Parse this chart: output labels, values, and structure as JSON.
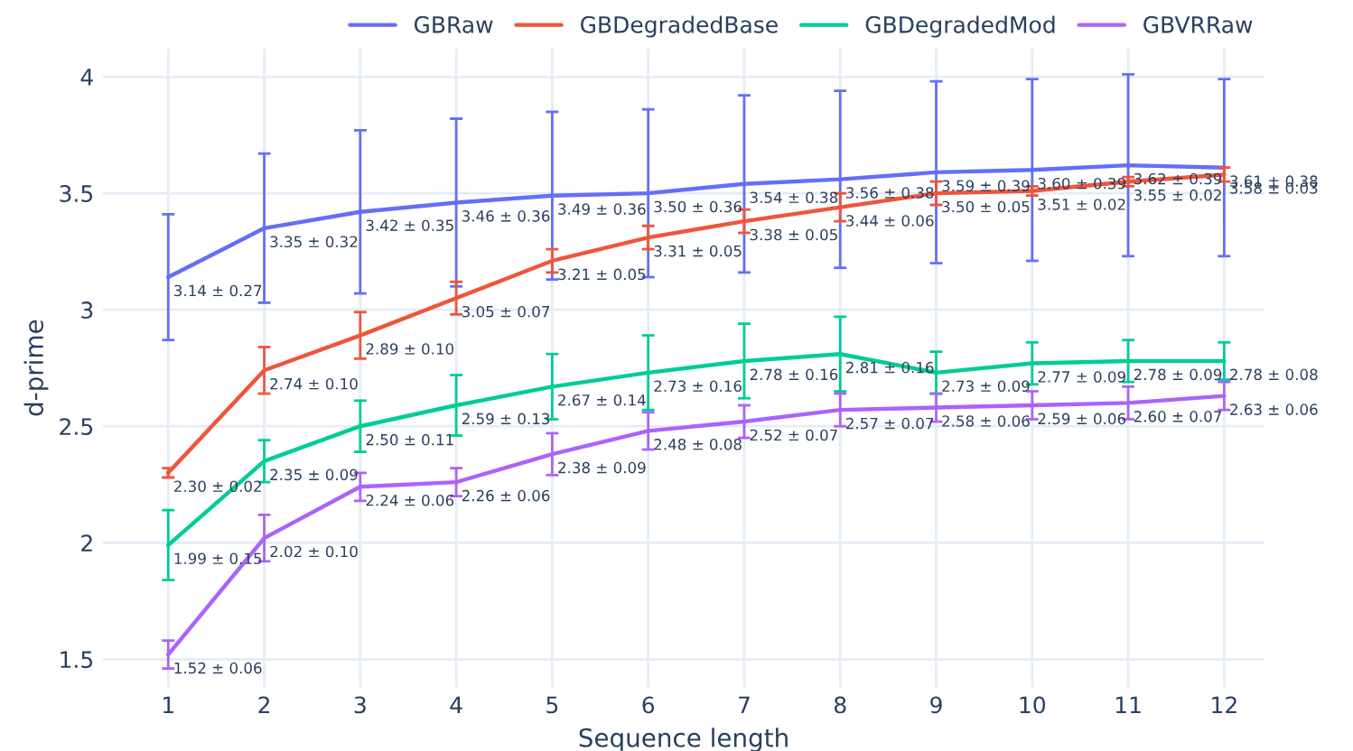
{
  "chart_data": {
    "type": "line",
    "xlabel": "Sequence length",
    "ylabel": "d-prime",
    "x": [
      1,
      2,
      3,
      4,
      5,
      6,
      7,
      8,
      9,
      10,
      11,
      12
    ],
    "xlim": [
      0.32,
      12.42
    ],
    "xticks": [
      1,
      2,
      3,
      4,
      5,
      6,
      7,
      8,
      9,
      10,
      11,
      12
    ],
    "ylim": [
      1.38,
      4.12
    ],
    "yticks": [
      1.5,
      2,
      2.5,
      3,
      3.5,
      4
    ],
    "grid": true,
    "legend": "top right",
    "marker": "none",
    "line_style": "solid",
    "series": [
      {
        "name": "GBRaw",
        "color": "#636efa",
        "values": [
          3.14,
          3.35,
          3.42,
          3.46,
          3.49,
          3.5,
          3.54,
          3.56,
          3.59,
          3.6,
          3.62,
          3.61
        ],
        "errors": [
          0.27,
          0.32,
          0.35,
          0.36,
          0.36,
          0.36,
          0.38,
          0.38,
          0.39,
          0.39,
          0.39,
          0.38
        ],
        "value_labels": [
          "3.14 ± 0.27",
          "3.35 ± 0.32",
          "3.42 ± 0.35",
          "3.46 ± 0.36",
          "3.49 ± 0.36",
          "3.50 ± 0.36",
          "3.54 ± 0.38",
          "3.56 ± 0.38",
          "3.59 ± 0.39",
          "3.60 ± 0.39",
          "3.62 ± 0.39",
          "3.61 ± 0.38"
        ]
      },
      {
        "name": "GBDegradedBase",
        "color": "#ef553b",
        "values": [
          2.3,
          2.74,
          2.89,
          3.05,
          3.21,
          3.31,
          3.38,
          3.44,
          3.5,
          3.51,
          3.55,
          3.58
        ],
        "errors": [
          0.02,
          0.1,
          0.1,
          0.07,
          0.05,
          0.05,
          0.05,
          0.06,
          0.05,
          0.02,
          0.02,
          0.03
        ],
        "value_labels": [
          "2.30 ± 0.02",
          "2.74 ± 0.10",
          "2.89 ± 0.10",
          "3.05 ± 0.07",
          "3.21 ± 0.05",
          "3.31 ± 0.05",
          "3.38 ± 0.05",
          "3.44 ± 0.06",
          "3.50 ± 0.05",
          "3.51 ± 0.02",
          "3.55 ± 0.02",
          "3.58 ± 0.03"
        ]
      },
      {
        "name": "GBDegradedMod",
        "color": "#00cc96",
        "values": [
          1.99,
          2.35,
          2.5,
          2.59,
          2.67,
          2.73,
          2.78,
          2.81,
          2.73,
          2.77,
          2.78,
          2.78
        ],
        "errors": [
          0.15,
          0.09,
          0.11,
          0.13,
          0.14,
          0.16,
          0.16,
          0.16,
          0.09,
          0.09,
          0.09,
          0.08
        ],
        "value_labels": [
          "1.99 ± 0.15",
          "2.35 ± 0.09",
          "2.50 ± 0.11",
          "2.59 ± 0.13",
          "2.67 ± 0.14",
          "2.73 ± 0.16",
          "2.78 ± 0.16",
          "2.81 ± 0.16",
          "2.73 ± 0.09",
          "2.77 ± 0.09",
          "2.78 ± 0.09",
          "2.78 ± 0.08"
        ]
      },
      {
        "name": "GBVRRaw",
        "color": "#ab63fa",
        "values": [
          1.52,
          2.02,
          2.24,
          2.26,
          2.38,
          2.48,
          2.52,
          2.57,
          2.58,
          2.59,
          2.6,
          2.63
        ],
        "errors": [
          0.06,
          0.1,
          0.06,
          0.06,
          0.09,
          0.08,
          0.07,
          0.07,
          0.06,
          0.06,
          0.07,
          0.06
        ],
        "value_labels": [
          "1.52 ± 0.06",
          "2.02 ± 0.10",
          "2.24 ± 0.06",
          "2.26 ± 0.06",
          "2.38 ± 0.09",
          "2.48 ± 0.08",
          "2.52 ± 0.07",
          "2.57 ± 0.07",
          "2.58 ± 0.06",
          "2.59 ± 0.06",
          "2.60 ± 0.07",
          "2.63 ± 0.06"
        ]
      }
    ]
  }
}
